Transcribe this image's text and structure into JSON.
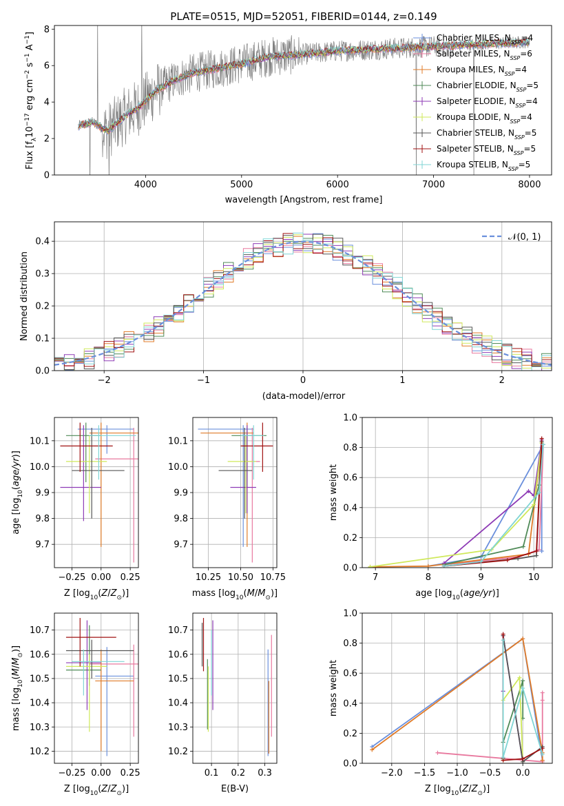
{
  "figure": {
    "title": "PLATE=0515, MJD=52051, FIBERID=0144, z=0.149"
  },
  "colors": {
    "Chabrier MILES": "#6a8fdc",
    "Salpeter MILES": "#e8789e",
    "Kroupa MILES": "#e07b28",
    "Chabrier ELODIE": "#4f8a57",
    "Salpeter ELODIE": "#8d3ab5",
    "Kroupa ELODIE": "#cfe85a",
    "Chabrier STELIB": "#555555",
    "Salpeter STELIB": "#a01010",
    "Kroupa STELIB": "#7fd4d4",
    "data": "#808080"
  },
  "legend_spectrum": [
    {
      "model": "Chabrier MILES",
      "label": "Chabrier MILES, N",
      "sub": "SSP",
      "tail": "=4"
    },
    {
      "model": "Salpeter MILES",
      "label": "Salpeter MILES, N",
      "sub": "SSP",
      "tail": "=6"
    },
    {
      "model": "Kroupa MILES",
      "label": "Kroupa MILES, N",
      "sub": "SSP",
      "tail": "=4"
    },
    {
      "model": "Chabrier ELODIE",
      "label": "Chabrier ELODIE, N",
      "sub": "SSP",
      "tail": "=5"
    },
    {
      "model": "Salpeter ELODIE",
      "label": "Salpeter ELODIE, N",
      "sub": "SSP",
      "tail": "=4"
    },
    {
      "model": "Kroupa ELODIE",
      "label": "Kroupa ELODIE, N",
      "sub": "SSP",
      "tail": "=4"
    },
    {
      "model": "Chabrier STELIB",
      "label": "Chabrier STELIB, N",
      "sub": "SSP",
      "tail": "=5"
    },
    {
      "model": "Salpeter STELIB",
      "label": "Salpeter STELIB, N",
      "sub": "SSP",
      "tail": "=5"
    },
    {
      "model": "Kroupa STELIB",
      "label": "Kroupa STELIB, N",
      "sub": "SSP",
      "tail": "=5"
    }
  ],
  "chart_data": [
    {
      "id": "spectrum",
      "type": "line",
      "xlabel": "wavelength [Angstrom, rest frame]",
      "ylabel": "Flux [f_λ 10^-17 erg cm^-2 s^-1 A^-1]",
      "xlim": [
        3050,
        8230
      ],
      "ylim": [
        0,
        8.2
      ],
      "xticks": [
        4000,
        5000,
        6000,
        7000,
        8000
      ],
      "yticks": [
        0,
        2,
        4,
        6,
        8
      ],
      "continuum": {
        "x": [
          3300,
          3450,
          3600,
          3800,
          3950,
          4100,
          4300,
          4500,
          4800,
          5000,
          5300,
          5600,
          6000,
          6400,
          6800,
          7200,
          7600,
          8000
        ],
        "y": [
          2.7,
          2.9,
          2.4,
          3.3,
          3.8,
          4.6,
          5.2,
          5.6,
          5.9,
          6.1,
          6.5,
          6.6,
          6.8,
          6.9,
          7.0,
          7.1,
          7.2,
          7.3
        ]
      }
    },
    {
      "id": "residuals",
      "type": "bar",
      "xlabel": "(data-model)/error",
      "ylabel": "Normed distribution",
      "xlim": [
        -2.5,
        2.5
      ],
      "ylim": [
        0,
        0.46
      ],
      "xticks": [
        -2,
        -1,
        0,
        1,
        2
      ],
      "yticks": [
        0.0,
        0.1,
        0.2,
        0.3,
        0.4
      ],
      "legend": "$\\mathcal{N}(0,1)$",
      "gaussian": {
        "mu": 0,
        "sigma": 1
      },
      "bin_width": 0.1
    },
    {
      "id": "age-vs-Z",
      "type": "scatter",
      "xlabel": "Z [log10(Z/Z_sun)]",
      "ylabel": "age [log10(age/yr)]",
      "xlim": [
        -0.4,
        0.32
      ],
      "ylim": [
        9.61,
        10.19
      ],
      "xticks": [
        -0.25,
        0.0,
        0.25
      ],
      "yticks": [
        9.7,
        9.8,
        9.9,
        10.0,
        10.1
      ],
      "points": [
        {
          "model": "Chabrier MILES",
          "x": 0.05,
          "xlo": -0.2,
          "xhi": 0.28,
          "y": 10.145,
          "ylo": 10.05,
          "yhi": 10.16
        },
        {
          "model": "Salpeter MILES",
          "x": 0.28,
          "xlo": -0.05,
          "xhi": 0.35,
          "y": 10.03,
          "ylo": 9.63,
          "yhi": 10.15
        },
        {
          "model": "Kroupa MILES",
          "x": 0.0,
          "xlo": -0.1,
          "xhi": 0.35,
          "y": 10.13,
          "ylo": 9.69,
          "yhi": 10.17
        },
        {
          "model": "Chabrier ELODIE",
          "x": -0.13,
          "xlo": -0.3,
          "xhi": 0.0,
          "y": 10.12,
          "ylo": 9.94,
          "yhi": 10.17
        },
        {
          "model": "Salpeter ELODIE",
          "x": -0.15,
          "xlo": -0.35,
          "xhi": 0.0,
          "y": 9.92,
          "ylo": 9.79,
          "yhi": 10.16
        },
        {
          "model": "Kroupa ELODIE",
          "x": -0.1,
          "xlo": -0.3,
          "xhi": 0.05,
          "y": 10.02,
          "ylo": 9.82,
          "yhi": 10.12
        },
        {
          "model": "Chabrier STELIB",
          "x": -0.08,
          "xlo": -0.25,
          "xhi": 0.2,
          "y": 9.985,
          "ylo": 9.8,
          "yhi": 10.15
        },
        {
          "model": "Salpeter STELIB",
          "x": -0.18,
          "xlo": -0.35,
          "xhi": 0.1,
          "y": 10.08,
          "ylo": 9.98,
          "yhi": 10.17
        },
        {
          "model": "Kroupa STELIB",
          "x": -0.02,
          "xlo": -0.1,
          "xhi": 0.3,
          "y": 10.12,
          "ylo": 9.95,
          "yhi": 10.16
        }
      ]
    },
    {
      "id": "age-vs-mass",
      "type": "scatter",
      "xlabel": "mass [log10(M/M_sun)]",
      "ylabel": "",
      "xlim": [
        10.13,
        10.78
      ],
      "ylim": [
        9.61,
        10.19
      ],
      "xticks": [
        10.25,
        10.5,
        10.75
      ],
      "yticks": [
        9.7,
        9.8,
        9.9,
        10.0,
        10.1
      ],
      "points": [
        {
          "model": "Chabrier MILES",
          "x": 10.52,
          "xlo": 10.17,
          "xhi": 10.6,
          "y": 10.145,
          "ylo": 9.69,
          "yhi": 10.16
        },
        {
          "model": "Salpeter MILES",
          "x": 10.59,
          "xlo": 10.52,
          "xhi": 10.65,
          "y": 10.02,
          "ylo": 9.63,
          "yhi": 10.15
        },
        {
          "model": "Kroupa MILES",
          "x": 10.55,
          "xlo": 10.19,
          "xhi": 10.6,
          "y": 10.13,
          "ylo": 9.69,
          "yhi": 10.17
        },
        {
          "model": "Chabrier ELODIE",
          "x": 10.55,
          "xlo": 10.43,
          "xhi": 10.7,
          "y": 10.12,
          "ylo": 9.92,
          "yhi": 10.15
        },
        {
          "model": "Salpeter ELODIE",
          "x": 10.55,
          "xlo": 10.42,
          "xhi": 10.62,
          "y": 9.92,
          "ylo": 9.82,
          "yhi": 10.16
        },
        {
          "model": "Kroupa ELODIE",
          "x": 10.54,
          "xlo": 10.4,
          "xhi": 10.62,
          "y": 10.02,
          "ylo": 9.82,
          "yhi": 10.12
        },
        {
          "model": "Chabrier STELIB",
          "x": 10.53,
          "xlo": 10.33,
          "xhi": 10.59,
          "y": 9.985,
          "ylo": 9.8,
          "yhi": 10.15
        },
        {
          "model": "Salpeter STELIB",
          "x": 10.67,
          "xlo": 10.5,
          "xhi": 10.75,
          "y": 10.08,
          "ylo": 9.98,
          "yhi": 10.17
        },
        {
          "model": "Kroupa STELIB",
          "x": 10.6,
          "xlo": 10.5,
          "xhi": 10.68,
          "y": 10.12,
          "ylo": 9.95,
          "yhi": 10.16
        }
      ]
    },
    {
      "id": "massweight-vs-age",
      "type": "line",
      "xlabel": "age [log10(age/yr)]",
      "ylabel": "mass weight",
      "xlim": [
        6.75,
        10.35
      ],
      "ylim": [
        0,
        1.0
      ],
      "xticks": [
        7,
        8,
        9,
        10
      ],
      "yticks": [
        0.0,
        0.2,
        0.4,
        0.6,
        0.8,
        1.0
      ],
      "series": [
        {
          "model": "Chabrier MILES",
          "x": [
            8.0,
            9.0,
            10.15,
            10.15
          ],
          "y": [
            0.01,
            0.07,
            0.8,
            0.11
          ]
        },
        {
          "model": "Salpeter MILES",
          "x": [
            8.3,
            9.7,
            10.1,
            10.18
          ],
          "y": [
            0.02,
            0.07,
            0.12,
            0.82
          ]
        },
        {
          "model": "Kroupa MILES",
          "x": [
            6.9,
            8.0,
            9.9,
            10.15
          ],
          "y": [
            0.005,
            0.01,
            0.09,
            0.83
          ]
        },
        {
          "model": "Chabrier ELODIE",
          "x": [
            8.3,
            9.8,
            10.1,
            10.15
          ],
          "y": [
            0.02,
            0.14,
            0.55,
            0.83
          ]
        },
        {
          "model": "Salpeter ELODIE",
          "x": [
            8.3,
            9.9,
            10.0,
            10.15
          ],
          "y": [
            0.03,
            0.51,
            0.48,
            0.85
          ]
        },
        {
          "model": "Kroupa ELODIE",
          "x": [
            6.9,
            9.2,
            10.0,
            10.15
          ],
          "y": [
            0.005,
            0.12,
            0.42,
            0.83
          ]
        },
        {
          "model": "Chabrier STELIB",
          "x": [
            8.3,
            9.7,
            10.05,
            10.15
          ],
          "y": [
            0.01,
            0.06,
            0.08,
            0.84
          ]
        },
        {
          "model": "Salpeter STELIB",
          "x": [
            8.3,
            9.5,
            10.05,
            10.15
          ],
          "y": [
            0.01,
            0.05,
            0.11,
            0.86
          ]
        },
        {
          "model": "Kroupa STELIB",
          "x": [
            8.3,
            9.0,
            10.1,
            10.18
          ],
          "y": [
            0.01,
            0.04,
            0.5,
            0.82
          ]
        }
      ]
    },
    {
      "id": "mass-vs-Z",
      "type": "scatter",
      "xlabel": "Z [log10(Z/Z_sun)]",
      "ylabel": "mass [log10(M/M_sun)]",
      "xlim": [
        -0.4,
        0.32
      ],
      "ylim": [
        10.15,
        10.77
      ],
      "xticks": [
        -0.25,
        0.0,
        0.25
      ],
      "yticks": [
        10.2,
        10.3,
        10.4,
        10.5,
        10.6,
        10.7
      ],
      "points": [
        {
          "model": "Chabrier MILES",
          "x": 0.05,
          "xlo": -0.05,
          "xhi": 0.28,
          "y": 10.51,
          "ylo": 10.18,
          "yhi": 10.63
        },
        {
          "model": "Salpeter MILES",
          "x": 0.28,
          "xlo": -0.1,
          "xhi": 0.35,
          "y": 10.56,
          "ylo": 10.26,
          "yhi": 10.64
        },
        {
          "model": "Kroupa MILES",
          "x": 0.0,
          "xlo": -0.05,
          "xhi": 0.28,
          "y": 10.49,
          "ylo": 10.2,
          "yhi": 10.62
        },
        {
          "model": "Chabrier ELODIE",
          "x": -0.1,
          "xlo": -0.3,
          "xhi": 0.0,
          "y": 10.535,
          "ylo": 10.47,
          "yhi": 10.72
        },
        {
          "model": "Salpeter ELODIE",
          "x": -0.12,
          "xlo": -0.3,
          "xhi": 0.0,
          "y": 10.565,
          "ylo": 10.37,
          "yhi": 10.74
        },
        {
          "model": "Kroupa ELODIE",
          "x": -0.1,
          "xlo": -0.3,
          "xhi": 0.05,
          "y": 10.55,
          "ylo": 10.28,
          "yhi": 10.6
        },
        {
          "model": "Chabrier STELIB",
          "x": -0.08,
          "xlo": -0.3,
          "xhi": 0.28,
          "y": 10.615,
          "ylo": 10.5,
          "yhi": 10.66
        },
        {
          "model": "Salpeter STELIB",
          "x": -0.18,
          "xlo": -0.3,
          "xhi": 0.13,
          "y": 10.67,
          "ylo": 10.55,
          "yhi": 10.75
        },
        {
          "model": "Kroupa STELIB",
          "x": -0.15,
          "xlo": -0.25,
          "xhi": 0.2,
          "y": 10.57,
          "ylo": 10.43,
          "yhi": 10.62
        }
      ]
    },
    {
      "id": "mass-vs-ebv",
      "type": "scatter",
      "xlabel": "E(B-V)",
      "ylabel": "",
      "xlim": [
        0.03,
        0.345
      ],
      "ylim": [
        10.15,
        10.77
      ],
      "xticks": [
        0.1,
        0.2,
        0.3
      ],
      "yticks": [
        10.2,
        10.3,
        10.4,
        10.5,
        10.6,
        10.7
      ],
      "points": [
        {
          "model": "Chabrier MILES",
          "x": 0.312,
          "ylo": 10.18,
          "yhi": 10.62
        },
        {
          "model": "Salpeter MILES",
          "x": 0.325,
          "ylo": 10.26,
          "yhi": 10.68
        },
        {
          "model": "Kroupa MILES",
          "x": 0.315,
          "ylo": 10.19,
          "yhi": 10.49
        },
        {
          "model": "Chabrier ELODIE",
          "x": 0.085,
          "ylo": 10.29,
          "yhi": 10.58
        },
        {
          "model": "Salpeter ELODIE",
          "x": 0.105,
          "ylo": 10.37,
          "yhi": 10.74
        },
        {
          "model": "Kroupa ELODIE",
          "x": 0.088,
          "ylo": 10.28,
          "yhi": 10.55
        },
        {
          "model": "Chabrier STELIB",
          "x": 0.065,
          "ylo": 10.55,
          "yhi": 10.73
        },
        {
          "model": "Salpeter STELIB",
          "x": 0.07,
          "ylo": 10.53,
          "yhi": 10.75
        },
        {
          "model": "Kroupa STELIB",
          "x": 0.1,
          "ylo": 10.43,
          "yhi": 10.7
        }
      ]
    },
    {
      "id": "massweight-vs-Z",
      "type": "line",
      "xlabel": "Z [log10(Z/Z_sun)]",
      "ylabel": "mass weight",
      "xlim": [
        -2.45,
        0.45
      ],
      "ylim": [
        0,
        1.0
      ],
      "xticks": [
        -2.0,
        -1.5,
        -1.0,
        -0.5,
        0.0
      ],
      "yticks": [
        0.0,
        0.2,
        0.4,
        0.6,
        0.8,
        1.0
      ],
      "series": [
        {
          "model": "Chabrier MILES",
          "x": [
            -2.3,
            0.0,
            0.3
          ],
          "y": [
            0.11,
            0.83,
            0.02
          ]
        },
        {
          "model": "Salpeter MILES",
          "x": [
            -1.3,
            0.3,
            0.3,
            0.3
          ],
          "y": [
            0.07,
            0.01,
            0.42,
            0.47
          ]
        },
        {
          "model": "Kroupa MILES",
          "x": [
            -2.3,
            0.0,
            0.3,
            0.3
          ],
          "y": [
            0.09,
            0.83,
            0.07,
            0.02
          ]
        },
        {
          "model": "Chabrier ELODIE",
          "x": [
            -0.3,
            -0.3,
            0.0,
            0.0
          ],
          "y": [
            0.03,
            0.14,
            0.55,
            0.3
          ]
        },
        {
          "model": "Salpeter ELODIE",
          "x": [
            -0.3,
            -0.3,
            0.0
          ],
          "y": [
            0.48,
            0.85,
            0.01
          ]
        },
        {
          "model": "Kroupa ELODIE",
          "x": [
            -0.3,
            -0.3,
            -0.05,
            0.0
          ],
          "y": [
            0.02,
            0.42,
            0.57,
            0.01
          ]
        },
        {
          "model": "Chabrier STELIB",
          "x": [
            -0.3,
            0.0,
            0.3
          ],
          "y": [
            0.85,
            0.01,
            0.11
          ]
        },
        {
          "model": "Salpeter STELIB",
          "x": [
            -0.3,
            -0.3,
            0.0,
            0.3
          ],
          "y": [
            0.86,
            0.02,
            0.03,
            0.1
          ]
        },
        {
          "model": "Kroupa STELIB",
          "x": [
            -0.3,
            -0.3,
            0.0,
            0.3
          ],
          "y": [
            0.82,
            0.04,
            0.5,
            0.06
          ]
        }
      ]
    }
  ]
}
